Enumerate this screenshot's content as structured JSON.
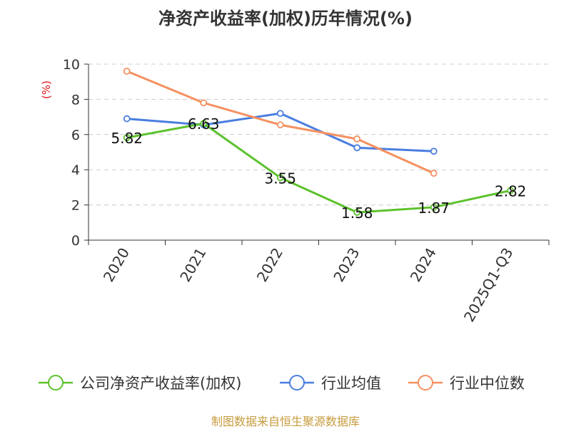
{
  "chart_data": {
    "type": "line",
    "title": "净资产收益率(加权)历年情况(%)",
    "ylabel": "(%)",
    "xlabel": "",
    "categories": [
      "2020",
      "2021",
      "2022",
      "2023",
      "2024",
      "2025Q1-Q3"
    ],
    "ylim": [
      0,
      10
    ],
    "yticks": [
      0,
      2,
      4,
      6,
      8,
      10
    ],
    "grid": true,
    "legend_position": "bottom",
    "series": [
      {
        "name": "公司净资产收益率(加权)",
        "color": "#5cc22c",
        "values": [
          5.82,
          6.63,
          3.55,
          1.58,
          1.87,
          2.82
        ],
        "labels": [
          "5.82",
          "6.63",
          "3.55",
          "1.58",
          "1.87",
          "2.82"
        ]
      },
      {
        "name": "行业均值",
        "color": "#4a7ee0",
        "values": [
          6.9,
          6.55,
          7.2,
          5.25,
          5.05,
          null
        ]
      },
      {
        "name": "行业中位数",
        "color": "#f59160",
        "values": [
          9.6,
          7.8,
          6.55,
          5.75,
          3.8,
          null
        ]
      }
    ]
  },
  "footer": {
    "source": "制图数据来自恒生聚源数据库"
  },
  "colors": {
    "axis": "#333333",
    "grid": "#cccccc",
    "ylabel": "#e0161a",
    "source": "#c79b3b"
  }
}
